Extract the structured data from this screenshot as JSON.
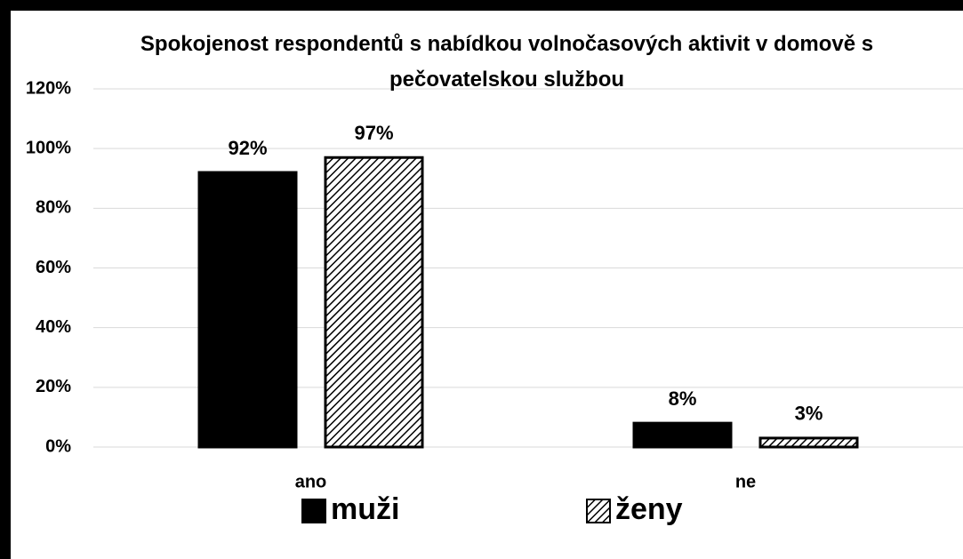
{
  "chart_data": {
    "type": "bar",
    "title": "Spokojenost respondentů s nabídkou volnočasových aktivit v domově s pečovatelskou službou",
    "categories": [
      "ano",
      "ne"
    ],
    "series": [
      {
        "name": "muži",
        "color": "#000000",
        "fill": "solid",
        "values": [
          92,
          8
        ],
        "value_labels": [
          "92%",
          "8%"
        ]
      },
      {
        "name": "ženy",
        "color": "#000000",
        "fill": "hatch",
        "values": [
          97,
          3
        ],
        "value_labels": [
          "97%",
          "3%"
        ]
      }
    ],
    "ylim": [
      0,
      120
    ],
    "yticks": [
      {
        "value": 0,
        "label": "0%"
      },
      {
        "value": 20,
        "label": "20%"
      },
      {
        "value": 40,
        "label": "40%"
      },
      {
        "value": 60,
        "label": "60%"
      },
      {
        "value": 80,
        "label": "80%"
      },
      {
        "value": 100,
        "label": "100%"
      },
      {
        "value": 120,
        "label": "120%"
      }
    ],
    "grid": true,
    "legend": "bottom"
  }
}
